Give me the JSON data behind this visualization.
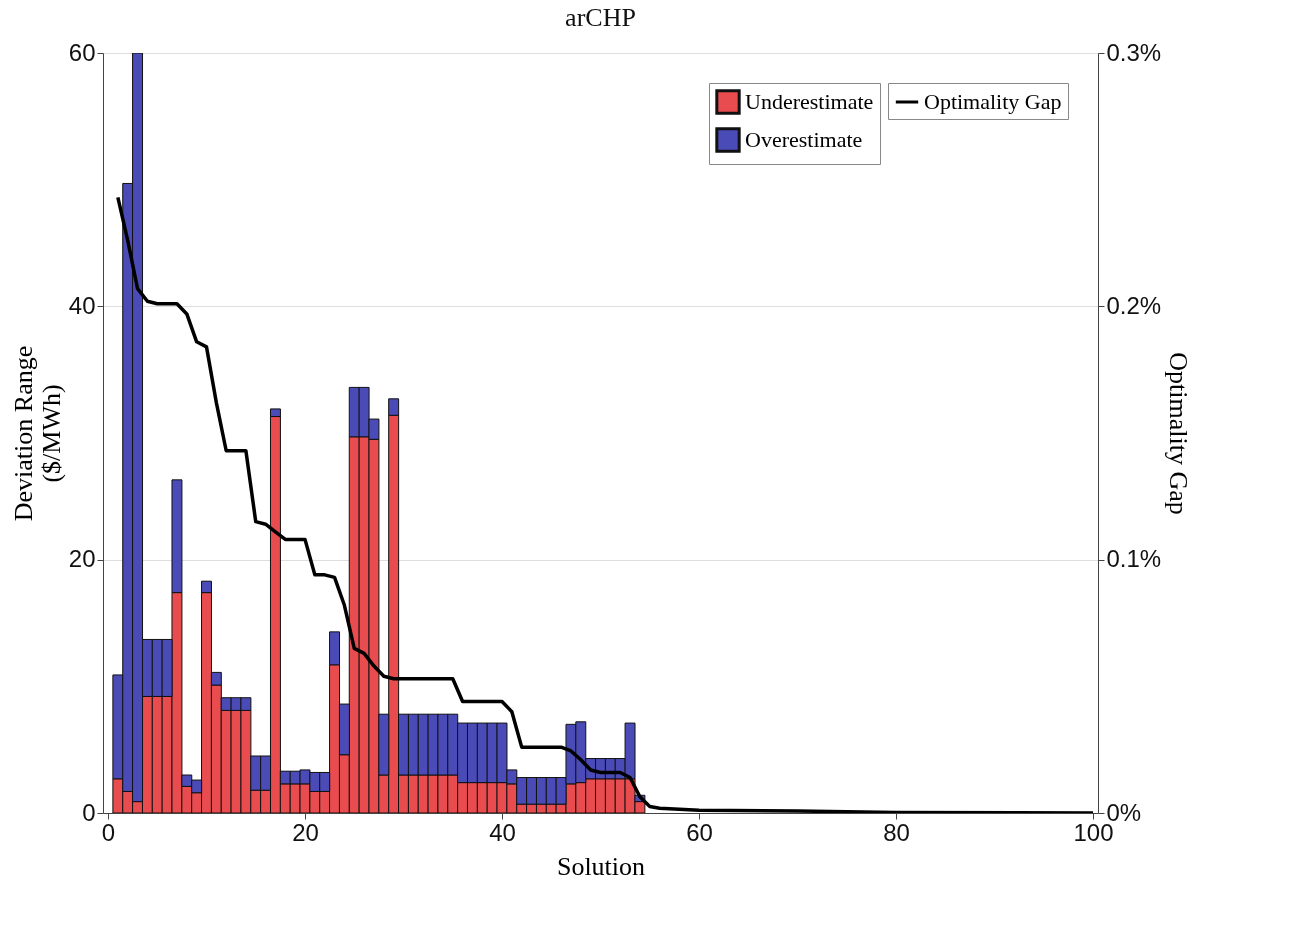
{
  "chart_data": {
    "type": "bar",
    "title": "arCHP",
    "xlabel": "Solution",
    "ylabel": "Deviation Range\n($/MWh)",
    "y2label": "Optimality Gap",
    "stacked": true,
    "legend": "top right",
    "grid": "y",
    "x": [
      1,
      2,
      3,
      4,
      5,
      6,
      7,
      8,
      9,
      10,
      11,
      12,
      13,
      14,
      15,
      16,
      17,
      18,
      19,
      20,
      21,
      22,
      23,
      24,
      25,
      26,
      27,
      28,
      29,
      30,
      31,
      32,
      33,
      34,
      35,
      36,
      37,
      38,
      39,
      40,
      41,
      42,
      43,
      44,
      45,
      46,
      47,
      48,
      49,
      50,
      51,
      52,
      53,
      54
    ],
    "xlim": [
      0,
      100
    ],
    "xticks": [
      0,
      20,
      40,
      60,
      80,
      100
    ],
    "ylim": [
      0,
      60
    ],
    "yticks": [
      0,
      20,
      40,
      60
    ],
    "y2lim": [
      0,
      0.3
    ],
    "y2ticks": [
      {
        "value": 0,
        "label": "0%"
      },
      {
        "value": 0.1,
        "label": "0.1%"
      },
      {
        "value": 0.2,
        "label": "0.2%"
      },
      {
        "value": 0.3,
        "label": "0.3%"
      }
    ],
    "series": [
      {
        "name": "Underestimate",
        "type": "bar",
        "color": "#e84c4f",
        "values": [
          2.7,
          1.7,
          0.9,
          9.2,
          9.2,
          9.2,
          17.4,
          2.1,
          1.6,
          17.4,
          10.1,
          8.1,
          8.1,
          8.1,
          1.8,
          1.8,
          31.3,
          2.3,
          2.3,
          2.3,
          1.7,
          1.7,
          11.7,
          4.6,
          29.7,
          29.7,
          29.5,
          3.0,
          31.4,
          3.0,
          3.0,
          3.0,
          3.0,
          3.0,
          3.0,
          2.4,
          2.4,
          2.4,
          2.4,
          2.4,
          2.3,
          0.7,
          0.7,
          0.7,
          0.7,
          0.7,
          2.3,
          2.4,
          2.7,
          2.7,
          2.7,
          2.7,
          2.7,
          0.9
        ]
      },
      {
        "name": "Overestimate",
        "type": "bar",
        "color": "#4b4bb8",
        "values": [
          8.2,
          48.0,
          59.1,
          4.5,
          4.5,
          4.5,
          8.9,
          0.9,
          1.0,
          0.9,
          1.0,
          1.0,
          1.0,
          1.0,
          2.7,
          2.7,
          0.6,
          1.0,
          1.0,
          1.1,
          1.5,
          1.5,
          2.6,
          4.0,
          3.9,
          3.9,
          1.6,
          4.8,
          1.3,
          4.8,
          4.8,
          4.8,
          4.8,
          4.8,
          4.8,
          4.7,
          4.7,
          4.7,
          4.7,
          4.7,
          1.1,
          2.1,
          2.1,
          2.1,
          2.1,
          2.1,
          4.7,
          4.8,
          1.6,
          1.6,
          1.6,
          1.6,
          4.4,
          0.5
        ]
      },
      {
        "name": "Optimality Gap",
        "type": "line",
        "axis": "y2",
        "color": "#000000",
        "line_style": "solid",
        "x": [
          1,
          2,
          3,
          4,
          5,
          6,
          7,
          8,
          9,
          10,
          11,
          12,
          13,
          14,
          15,
          16,
          17,
          18,
          19,
          20,
          21,
          22,
          23,
          24,
          25,
          26,
          27,
          28,
          29,
          30,
          35,
          36,
          40,
          41,
          42,
          46,
          47,
          48,
          49,
          50,
          52,
          53,
          54,
          55,
          56,
          60,
          70,
          80,
          100
        ],
        "values": [
          0.243,
          0.226,
          0.207,
          0.202,
          0.201,
          0.201,
          0.201,
          0.197,
          0.186,
          0.184,
          0.162,
          0.143,
          0.143,
          0.143,
          0.115,
          0.114,
          0.111,
          0.108,
          0.108,
          0.108,
          0.094,
          0.094,
          0.093,
          0.082,
          0.065,
          0.063,
          0.058,
          0.054,
          0.053,
          0.053,
          0.053,
          0.044,
          0.044,
          0.04,
          0.026,
          0.026,
          0.0245,
          0.021,
          0.017,
          0.016,
          0.016,
          0.014,
          0.0064,
          0.0026,
          0.0019,
          0.0011,
          0.0008,
          0.0002,
          0
        ]
      }
    ]
  }
}
